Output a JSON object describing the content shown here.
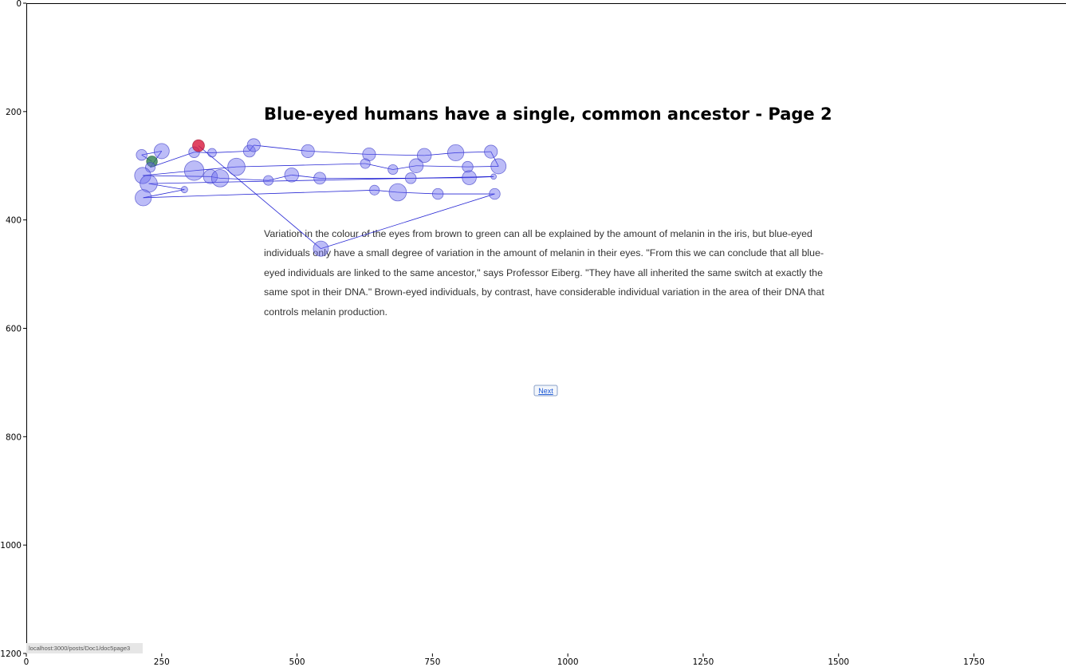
{
  "page": {
    "title": "Blue-eyed humans have a single, common ancestor - Page 2",
    "paragraph_lines": [
      "Variation in the colour of the eyes from brown to green can all be explained by the amount of melanin in the iris, but blue-eyed",
      "individuals only have a small degree of variation in the amount of melanin in their eyes. \"From this we can conclude that all blue-",
      "eyed individuals are linked to the same ancestor,\" says Professor Eiberg. \"They have all inherited the same switch at exactly the",
      "same spot in their DNA.\" Brown-eyed individuals, by contrast, have considerable individual variation in the area of their DNA that",
      "controls melanin production."
    ],
    "next_label": "Next",
    "status_url": "localhost:3000/posts/Doc1/doc5page3"
  },
  "chart_data": {
    "type": "scatter",
    "xlim": [
      0,
      1920
    ],
    "ylim": [
      1200,
      0
    ],
    "x_ticks": [
      0,
      250,
      500,
      750,
      1000,
      1250,
      1500,
      1750
    ],
    "y_ticks": [
      0,
      200,
      400,
      600,
      800,
      1000,
      1200
    ],
    "colors": {
      "fixation": "#6a6aee",
      "path": "#0000cc",
      "start": "#2e7d4f",
      "end": "#d8163c"
    },
    "fixations": [
      {
        "x": 232,
        "y": 292,
        "d": 10
      },
      {
        "x": 213,
        "y": 280,
        "d": 10
      },
      {
        "x": 250,
        "y": 273,
        "d": 14
      },
      {
        "x": 229,
        "y": 303,
        "d": 9
      },
      {
        "x": 310,
        "y": 275,
        "d": 10
      },
      {
        "x": 343,
        "y": 276,
        "d": 8
      },
      {
        "x": 412,
        "y": 273,
        "d": 11
      },
      {
        "x": 420,
        "y": 262,
        "d": 12
      },
      {
        "x": 520,
        "y": 273,
        "d": 12
      },
      {
        "x": 633,
        "y": 279,
        "d": 12
      },
      {
        "x": 735,
        "y": 281,
        "d": 13
      },
      {
        "x": 793,
        "y": 276,
        "d": 15
      },
      {
        "x": 858,
        "y": 274,
        "d": 12
      },
      {
        "x": 872,
        "y": 301,
        "d": 14
      },
      {
        "x": 815,
        "y": 302,
        "d": 10
      },
      {
        "x": 720,
        "y": 300,
        "d": 13
      },
      {
        "x": 677,
        "y": 307,
        "d": 9
      },
      {
        "x": 626,
        "y": 296,
        "d": 9
      },
      {
        "x": 388,
        "y": 302,
        "d": 16
      },
      {
        "x": 310,
        "y": 309,
        "d": 18
      },
      {
        "x": 215,
        "y": 318,
        "d": 15
      },
      {
        "x": 340,
        "y": 320,
        "d": 13
      },
      {
        "x": 358,
        "y": 323,
        "d": 16
      },
      {
        "x": 447,
        "y": 327,
        "d": 9
      },
      {
        "x": 490,
        "y": 317,
        "d": 13
      },
      {
        "x": 542,
        "y": 323,
        "d": 11
      },
      {
        "x": 710,
        "y": 323,
        "d": 10
      },
      {
        "x": 818,
        "y": 322,
        "d": 13
      },
      {
        "x": 863,
        "y": 320,
        "d": 5
      },
      {
        "x": 226,
        "y": 333,
        "d": 16
      },
      {
        "x": 292,
        "y": 344,
        "d": 6
      },
      {
        "x": 216,
        "y": 359,
        "d": 15
      },
      {
        "x": 643,
        "y": 345,
        "d": 9
      },
      {
        "x": 686,
        "y": 349,
        "d": 16
      },
      {
        "x": 760,
        "y": 352,
        "d": 10
      },
      {
        "x": 865,
        "y": 352,
        "d": 10
      },
      {
        "x": 544,
        "y": 453,
        "d": 14
      },
      {
        "x": 318,
        "y": 263,
        "d": 11
      }
    ],
    "start_index": 0,
    "end_index": 37
  }
}
